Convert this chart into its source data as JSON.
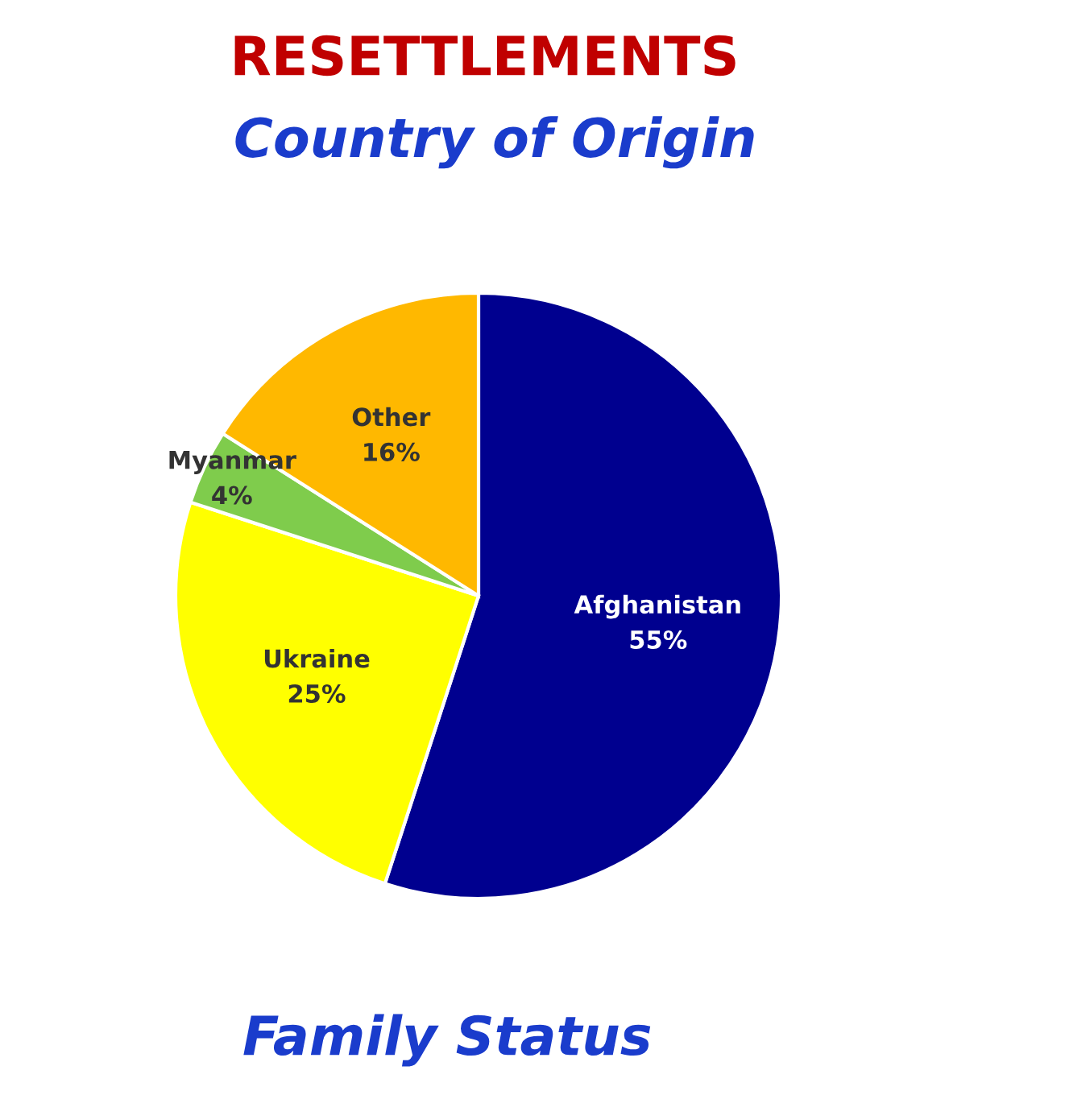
{
  "chart_data": {
    "type": "pie",
    "title": "RESETTLEMENTS",
    "subtitle": "Country of Origin",
    "categories": [
      "Afghanistan",
      "Ukraine",
      "Myanmar",
      "Other"
    ],
    "values": [
      55,
      25,
      4,
      16
    ],
    "colors": [
      "#00008f",
      "#ffff00",
      "#7fcc4c",
      "#ffb800"
    ],
    "value_labels": [
      "55%",
      "25%",
      "4%",
      "16%"
    ],
    "annotations": [
      "Family Status"
    ]
  }
}
